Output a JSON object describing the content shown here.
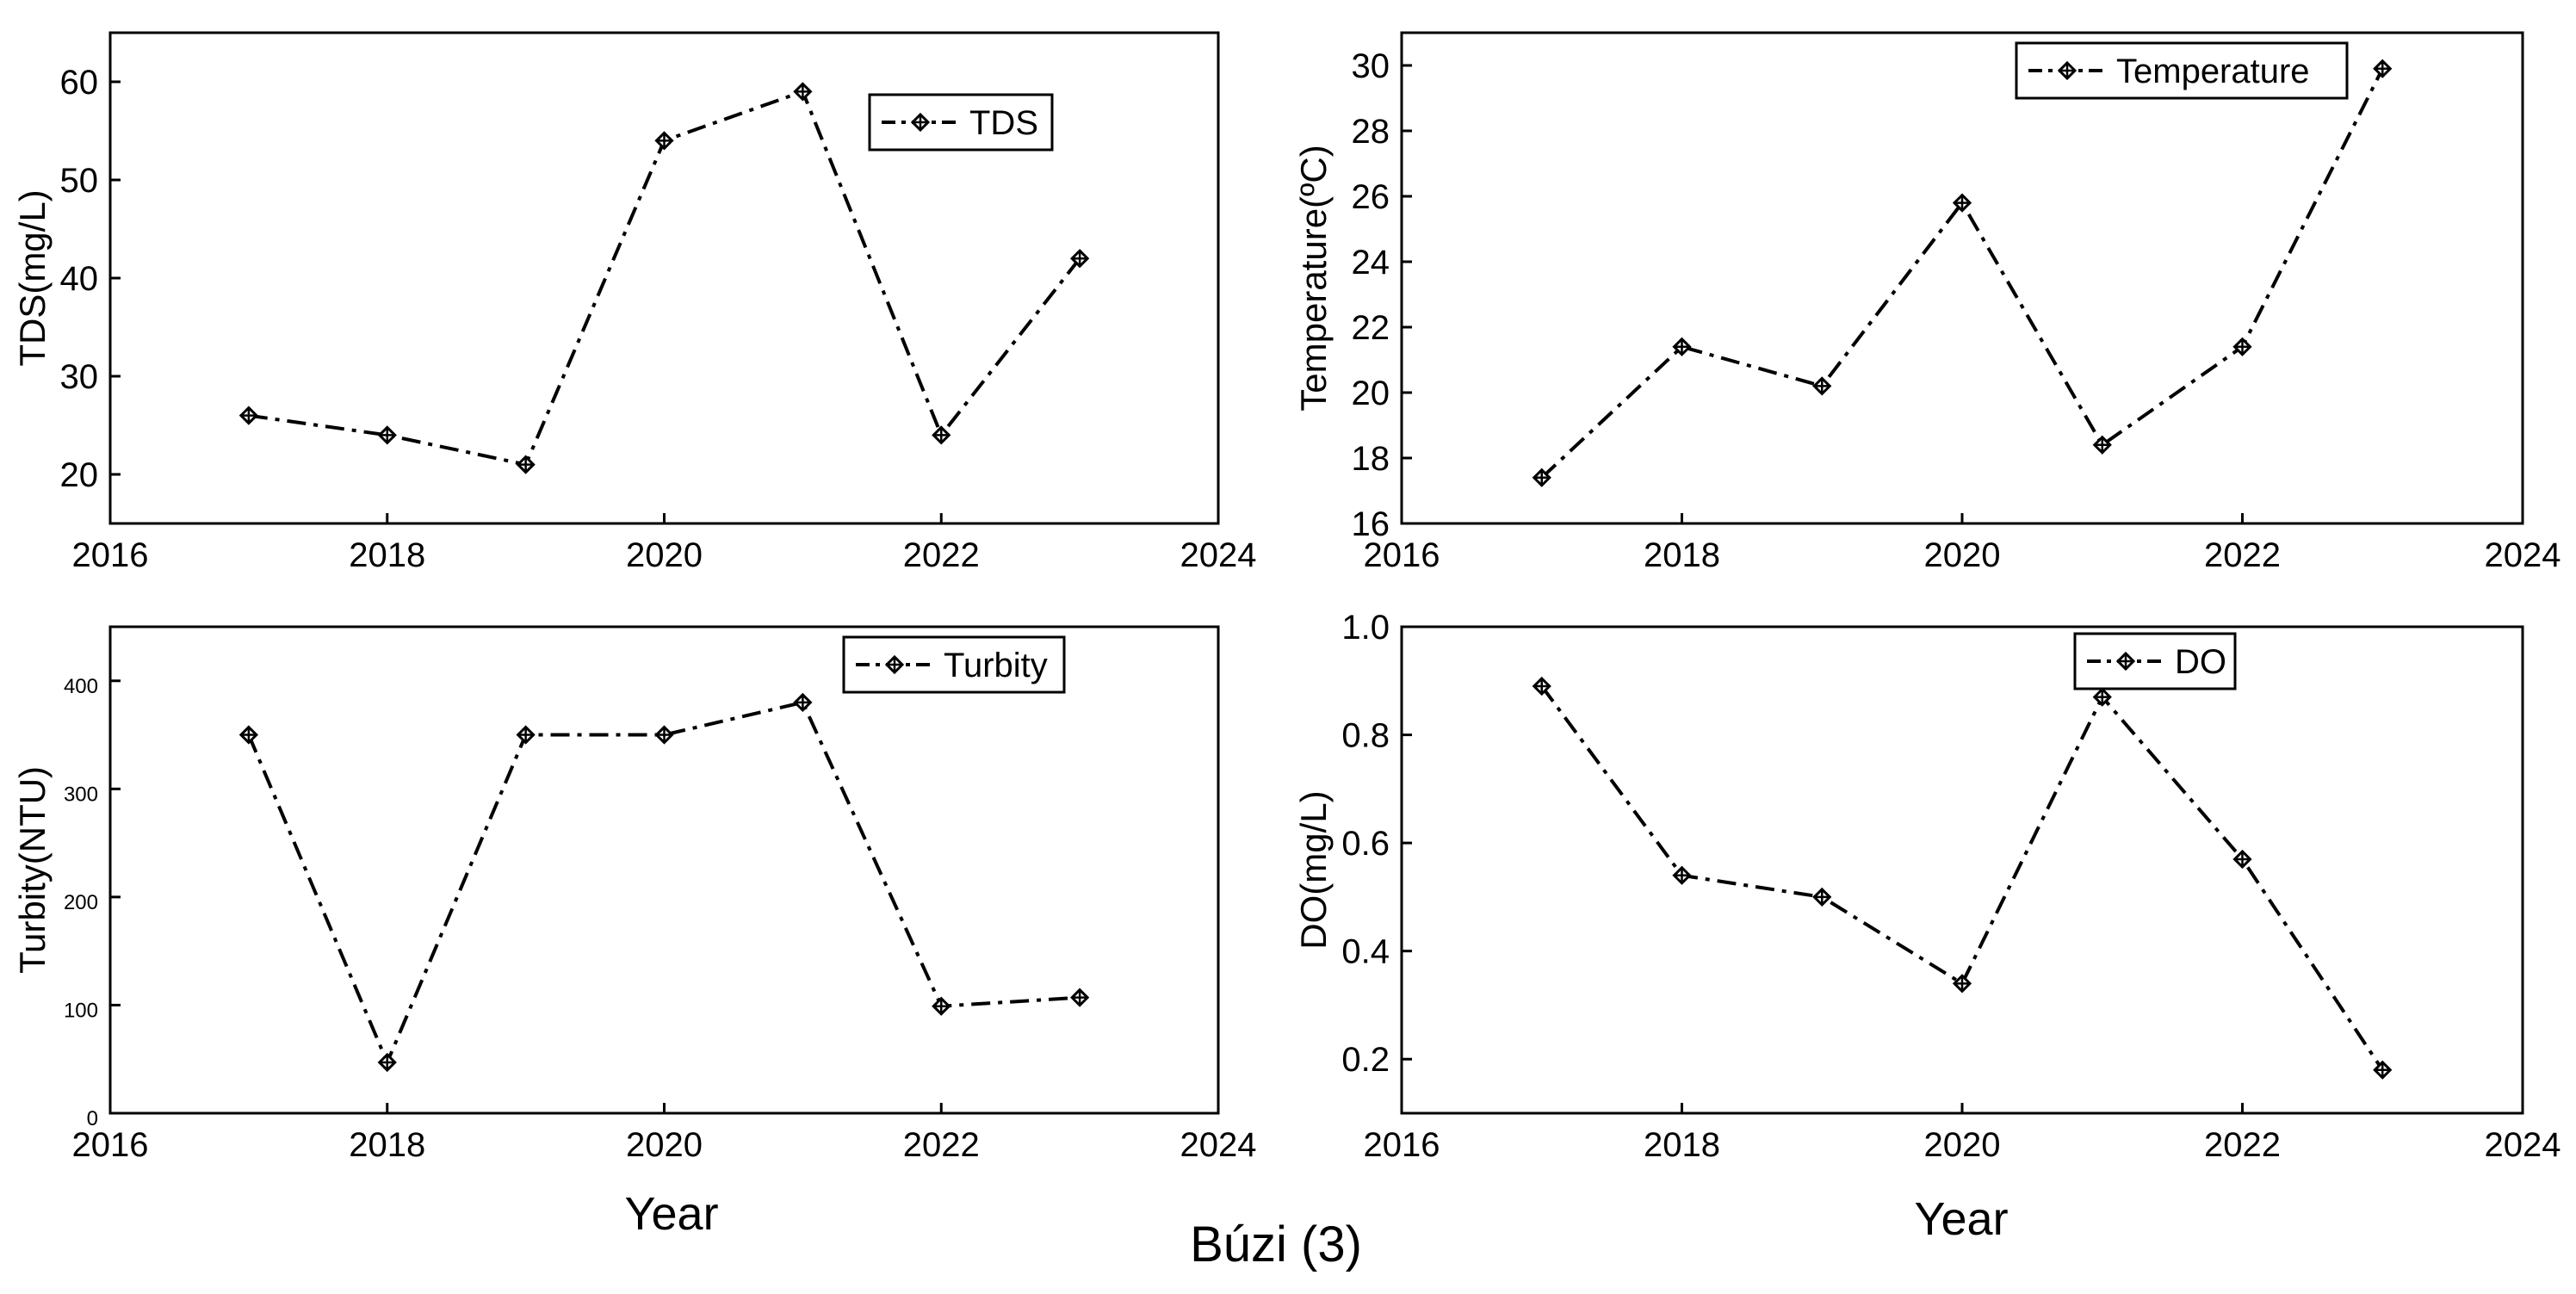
{
  "figure_caption": "Búzi (3)",
  "colors": {
    "line": "#000000",
    "frame": "#000000",
    "background": "#ffffff"
  },
  "chart_data": [
    {
      "type": "line",
      "id": "tds",
      "x": [
        2017,
        2018,
        2019,
        2020,
        2021,
        2022,
        2023
      ],
      "series": [
        {
          "name": "TDS",
          "values": [
            26,
            24,
            21,
            54,
            59,
            24,
            42
          ]
        }
      ],
      "xlabel": "",
      "ylabel": "TDS(mg/L)",
      "xlim": [
        2016,
        2024
      ],
      "ylim": [
        15,
        65
      ],
      "xticks": [
        "2016",
        "2018",
        "2020",
        "2022",
        "2024"
      ],
      "yticks": [
        "20",
        "30",
        "40",
        "50",
        "60"
      ],
      "legend_label": "TDS",
      "legend_position": "top-right",
      "grid": false
    },
    {
      "type": "line",
      "id": "temperature",
      "x": [
        2017,
        2018,
        2019,
        2020,
        2021,
        2022,
        2023
      ],
      "series": [
        {
          "name": "Temperature",
          "values": [
            17.4,
            21.4,
            20.2,
            25.8,
            18.4,
            21.4,
            29.9
          ]
        }
      ],
      "xlabel": "",
      "ylabel": "Temperature(ºC)",
      "xlim": [
        2016,
        2024
      ],
      "ylim": [
        16,
        31
      ],
      "xticks": [
        "2016",
        "2018",
        "2020",
        "2022",
        "2024"
      ],
      "yticks": [
        "16",
        "18",
        "20",
        "22",
        "24",
        "26",
        "28",
        "30"
      ],
      "legend_label": "Temperature",
      "legend_position": "top-right",
      "grid": false
    },
    {
      "type": "line",
      "id": "turbidity",
      "x": [
        2017,
        2018,
        2019,
        2020,
        2021,
        2022,
        2023
      ],
      "series": [
        {
          "name": "Turbity",
          "values": [
            350,
            47,
            350,
            350,
            380,
            99,
            107
          ]
        }
      ],
      "xlabel": "Year",
      "ylabel": "Turbity(NTU)",
      "xlim": [
        2016,
        2024
      ],
      "ylim": [
        0,
        450
      ],
      "xticks": [
        "2016",
        "2018",
        "2020",
        "2022",
        "2024"
      ],
      "yticks": [
        "0",
        "100",
        "200",
        "300",
        "400"
      ],
      "legend_label": "Turbity",
      "legend_position": "top-right",
      "grid": false
    },
    {
      "type": "line",
      "id": "do",
      "x": [
        2017,
        2018,
        2019,
        2020,
        2021,
        2022,
        2023
      ],
      "series": [
        {
          "name": "DO",
          "values": [
            0.89,
            0.54,
            0.5,
            0.34,
            0.87,
            0.57,
            0.18
          ]
        }
      ],
      "xlabel": "Year",
      "ylabel": "DO(mg/L)",
      "xlim": [
        2016,
        2024
      ],
      "ylim": [
        0.1,
        1.0
      ],
      "xticks": [
        "2016",
        "2018",
        "2020",
        "2022",
        "2024"
      ],
      "yticks": [
        "0.2",
        "0.4",
        "0.6",
        "0.8",
        "1.0"
      ],
      "legend_label": "DO",
      "legend_position": "top-center",
      "grid": false
    }
  ]
}
